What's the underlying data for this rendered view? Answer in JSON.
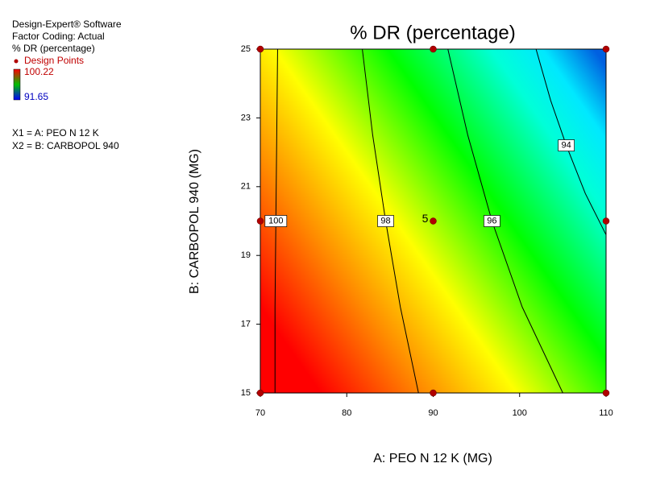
{
  "chart_data": {
    "type": "contour",
    "title": "% DR (percentage)",
    "info": [
      "Design-Expert® Software",
      "Factor Coding: Actual",
      "% DR (percentage)"
    ],
    "design_points_label": "Design Points",
    "colorbar": {
      "max": 100.22,
      "min": 91.65
    },
    "factors": [
      "X1 = A: PEO N 12 K",
      "X2 = B: CARBOPOL 940"
    ],
    "x_label": "A: PEO N 12 K (MG)",
    "y_label": "B: CARBOPOL 940 (MG)",
    "xlim": [
      70,
      110
    ],
    "ylim": [
      15,
      25
    ],
    "xticks": [
      70,
      80,
      90,
      100,
      110
    ],
    "yticks": [
      15,
      17,
      19,
      21,
      23,
      25
    ],
    "contours": [
      {
        "level": 100,
        "x": [
          72.0,
          71.9,
          71.8,
          71.7,
          71.7
        ],
        "y": [
          25,
          22.5,
          20,
          17.5,
          15
        ]
      },
      {
        "level": 98,
        "x": [
          81.8,
          83.0,
          84.5,
          86.2,
          88.3
        ],
        "y": [
          25,
          22.5,
          20,
          17.5,
          15
        ]
      },
      {
        "level": 96,
        "x": [
          91.7,
          94.0,
          96.8,
          100.3,
          105.0
        ],
        "y": [
          25,
          22.5,
          20,
          17.5,
          15
        ]
      },
      {
        "level": 94,
        "x": [
          101.9,
          103.6,
          105.4,
          107.6,
          110
        ],
        "y": [
          25,
          23.5,
          22.2,
          20.8,
          19.6
        ]
      }
    ],
    "design_points": {
      "x": [
        70,
        70,
        70,
        90,
        90,
        90,
        110,
        110,
        110
      ],
      "y": [
        15,
        20,
        25,
        15,
        20,
        25,
        15,
        20,
        25
      ],
      "replicates": [
        1,
        1,
        1,
        1,
        5,
        1,
        1,
        1,
        1
      ],
      "color": "#b00000"
    }
  }
}
